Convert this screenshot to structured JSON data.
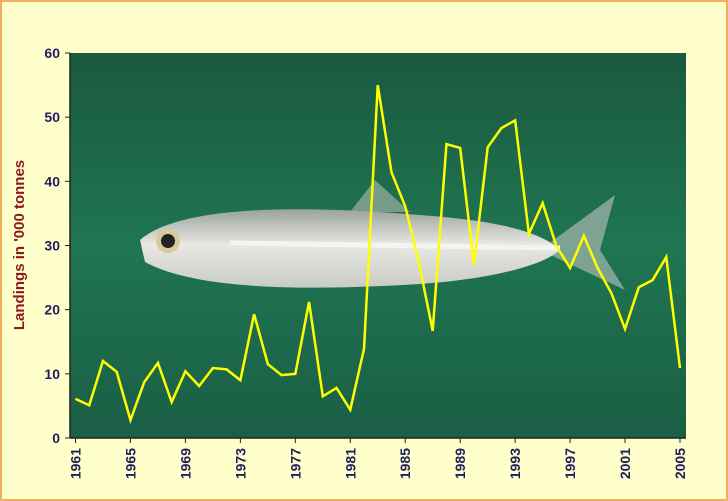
{
  "chart_data": {
    "type": "line",
    "y_label": "Landings in '000 tonnes",
    "x": [
      1961,
      1962,
      1963,
      1964,
      1965,
      1966,
      1967,
      1968,
      1969,
      1970,
      1971,
      1972,
      1973,
      1974,
      1975,
      1976,
      1977,
      1978,
      1979,
      1980,
      1981,
      1982,
      1983,
      1984,
      1985,
      1986,
      1987,
      1988,
      1989,
      1990,
      1991,
      1992,
      1993,
      1994,
      1995,
      1996,
      1997,
      1998,
      1999,
      2000,
      2001,
      2002,
      2003,
      2004,
      2005
    ],
    "values": [
      6.1,
      5.1,
      12.0,
      10.3,
      2.8,
      8.7,
      11.7,
      5.6,
      10.4,
      8.1,
      10.9,
      10.7,
      9.0,
      19.3,
      11.5,
      9.8,
      10.0,
      21.2,
      6.5,
      7.8,
      4.4,
      13.9,
      55.0,
      41.4,
      36.1,
      27.3,
      16.7,
      45.8,
      45.2,
      27.0,
      45.3,
      48.3,
      49.5,
      31.8,
      36.6,
      29.9,
      26.5,
      31.5,
      26.5,
      22.6,
      17.0,
      23.5,
      24.6,
      28.2,
      10.9
    ],
    "color": "#ffff00",
    "xlim": [
      1960.6,
      2005
    ],
    "xticks": [
      1961,
      1965,
      1969,
      1973,
      1977,
      1981,
      1985,
      1989,
      1993,
      1997,
      2001,
      2005
    ],
    "ylim": [
      0,
      60
    ],
    "yticks": [
      0,
      10,
      20,
      30,
      40,
      50,
      60
    ]
  }
}
